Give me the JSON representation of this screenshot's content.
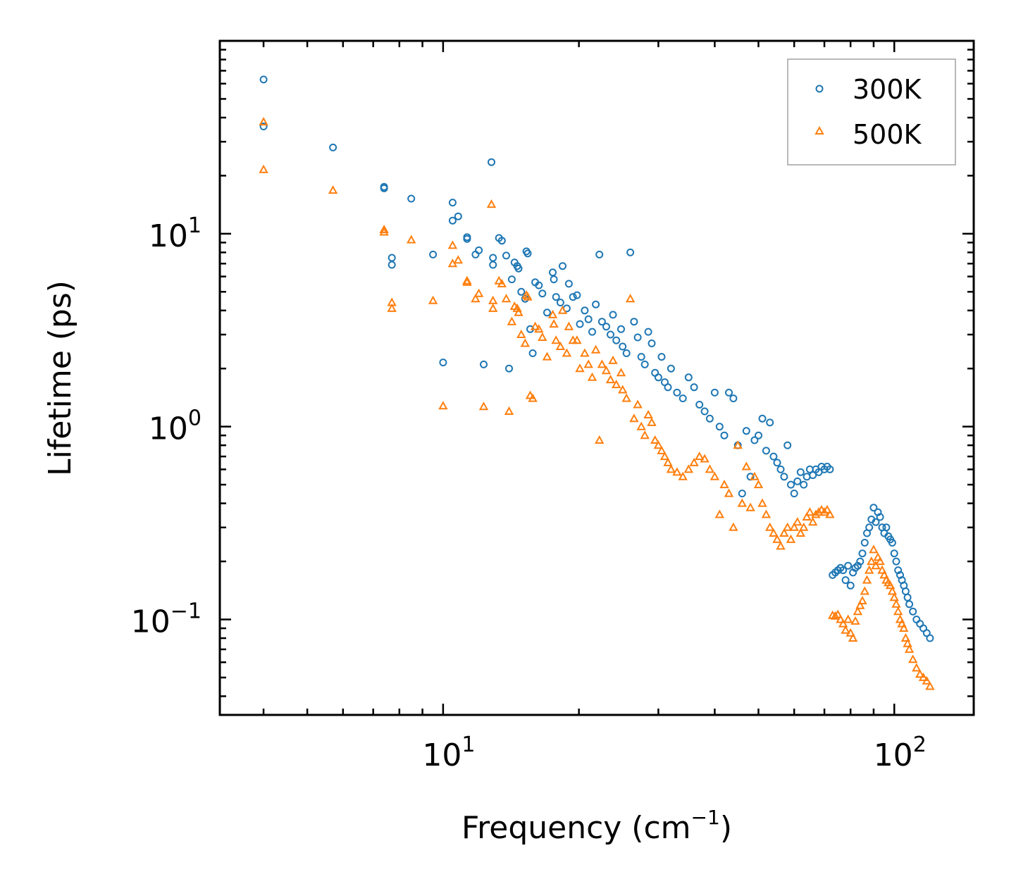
{
  "chart_data": {
    "type": "scatter",
    "xscale": "log",
    "yscale": "log",
    "xlabel": "Frequency (cm",
    "xlabel_sup": "−1",
    "xlabel_suffix": ")",
    "ylabel": "Lifetime (ps)",
    "xlim": [
      3.2,
      150
    ],
    "ylim": [
      0.032,
      100
    ],
    "xticks": [
      {
        "value": 10,
        "base": "10",
        "exp": "1"
      },
      {
        "value": 100,
        "base": "10",
        "exp": "2"
      }
    ],
    "yticks": [
      {
        "value": 0.1,
        "base": "10",
        "exp": "−1"
      },
      {
        "value": 1,
        "base": "10",
        "exp": "0"
      },
      {
        "value": 10,
        "base": "10",
        "exp": "1"
      }
    ],
    "legend_position": "top-right",
    "series": [
      {
        "name": "300K",
        "marker": "circle",
        "color": "#1f77b4",
        "points": [
          [
            4.0,
            63
          ],
          [
            4.0,
            36
          ],
          [
            5.7,
            28
          ],
          [
            7.4,
            17.5
          ],
          [
            7.4,
            17.2
          ],
          [
            7.7,
            7.5
          ],
          [
            7.7,
            6.9
          ],
          [
            8.5,
            15.2
          ],
          [
            9.5,
            7.8
          ],
          [
            10.0,
            2.15
          ],
          [
            10.5,
            14.5
          ],
          [
            10.5,
            11.7
          ],
          [
            10.8,
            12.3
          ],
          [
            11.3,
            9.6
          ],
          [
            11.3,
            9.4
          ],
          [
            11.8,
            7.8
          ],
          [
            12.0,
            8.2
          ],
          [
            12.3,
            2.1
          ],
          [
            12.8,
            23.5
          ],
          [
            12.9,
            7.5
          ],
          [
            12.9,
            6.9
          ],
          [
            13.3,
            9.5
          ],
          [
            13.5,
            9.2
          ],
          [
            13.8,
            7.7
          ],
          [
            14.0,
            2.0
          ],
          [
            14.2,
            5.8
          ],
          [
            14.4,
            7.1
          ],
          [
            14.6,
            6.8
          ],
          [
            14.7,
            6.6
          ],
          [
            14.9,
            5.0
          ],
          [
            15.3,
            8.1
          ],
          [
            15.4,
            7.9
          ],
          [
            15.2,
            4.6
          ],
          [
            15.6,
            3.2
          ],
          [
            15.8,
            2.4
          ],
          [
            16.0,
            5.6
          ],
          [
            16.3,
            5.4
          ],
          [
            16.6,
            4.9
          ],
          [
            17.0,
            3.9
          ],
          [
            17.5,
            6.3
          ],
          [
            17.6,
            5.8
          ],
          [
            17.8,
            4.7
          ],
          [
            18.2,
            4.4
          ],
          [
            18.4,
            6.8
          ],
          [
            18.8,
            4.1
          ],
          [
            19.0,
            5.5
          ],
          [
            19.4,
            4.7
          ],
          [
            19.8,
            4.8
          ],
          [
            20.1,
            3.4
          ],
          [
            20.6,
            4.0
          ],
          [
            21.0,
            3.6
          ],
          [
            21.4,
            3.1
          ],
          [
            21.8,
            4.3
          ],
          [
            22.2,
            7.8
          ],
          [
            22.5,
            3.5
          ],
          [
            23.0,
            3.3
          ],
          [
            23.5,
            3.0
          ],
          [
            23.8,
            3.8
          ],
          [
            24.2,
            2.8
          ],
          [
            24.8,
            3.2
          ],
          [
            25.0,
            2.6
          ],
          [
            25.5,
            2.4
          ],
          [
            26.0,
            8.0
          ],
          [
            26.5,
            3.5
          ],
          [
            27.0,
            2.9
          ],
          [
            27.5,
            2.3
          ],
          [
            28.0,
            2.1
          ],
          [
            28.5,
            3.1
          ],
          [
            29.0,
            2.7
          ],
          [
            29.5,
            1.9
          ],
          [
            30.0,
            1.8
          ],
          [
            30.5,
            2.3
          ],
          [
            31.0,
            1.7
          ],
          [
            31.5,
            1.6
          ],
          [
            32.0,
            2.0
          ],
          [
            33.0,
            1.5
          ],
          [
            34.0,
            1.4
          ],
          [
            35.0,
            1.8
          ],
          [
            36.0,
            1.6
          ],
          [
            37.0,
            1.3
          ],
          [
            38.0,
            1.2
          ],
          [
            39.0,
            1.1
          ],
          [
            40.0,
            1.5
          ],
          [
            41.0,
            1.0
          ],
          [
            42.0,
            0.9
          ],
          [
            43.0,
            1.5
          ],
          [
            44.0,
            1.4
          ],
          [
            45.0,
            0.8
          ],
          [
            46.0,
            0.45
          ],
          [
            47.0,
            0.95
          ],
          [
            48.0,
            0.55
          ],
          [
            49.0,
            0.85
          ],
          [
            50.0,
            0.9
          ],
          [
            51.0,
            1.1
          ],
          [
            52.0,
            0.75
          ],
          [
            53.0,
            1.05
          ],
          [
            54.0,
            0.7
          ],
          [
            55.0,
            0.65
          ],
          [
            56.0,
            0.6
          ],
          [
            57.0,
            0.55
          ],
          [
            58.0,
            0.8
          ],
          [
            59.0,
            0.5
          ],
          [
            60.0,
            0.45
          ],
          [
            61.0,
            0.52
          ],
          [
            62.0,
            0.58
          ],
          [
            63.0,
            0.5
          ],
          [
            64.0,
            0.55
          ],
          [
            65.0,
            0.6
          ],
          [
            66.0,
            0.56
          ],
          [
            67.0,
            0.6
          ],
          [
            68.0,
            0.58
          ],
          [
            69.0,
            0.62
          ],
          [
            70.0,
            0.6
          ],
          [
            71.0,
            0.62
          ],
          [
            72.0,
            0.6
          ],
          [
            73.0,
            0.17
          ],
          [
            74.0,
            0.175
          ],
          [
            75.0,
            0.18
          ],
          [
            76.0,
            0.185
          ],
          [
            77.0,
            0.18
          ],
          [
            78.0,
            0.16
          ],
          [
            79.0,
            0.19
          ],
          [
            80.0,
            0.15
          ],
          [
            81.0,
            0.175
          ],
          [
            82.0,
            0.185
          ],
          [
            83.0,
            0.19
          ],
          [
            84.0,
            0.2
          ],
          [
            85.0,
            0.22
          ],
          [
            86.0,
            0.25
          ],
          [
            87.0,
            0.28
          ],
          [
            88.0,
            0.3
          ],
          [
            89.0,
            0.33
          ],
          [
            90.0,
            0.38
          ],
          [
            91.0,
            0.32
          ],
          [
            92.0,
            0.36
          ],
          [
            93.0,
            0.34
          ],
          [
            94.0,
            0.3
          ],
          [
            95.0,
            0.28
          ],
          [
            96.0,
            0.3
          ],
          [
            97.0,
            0.27
          ],
          [
            98.0,
            0.26
          ],
          [
            99.0,
            0.25
          ],
          [
            100.0,
            0.22
          ],
          [
            101.0,
            0.2
          ],
          [
            102.0,
            0.18
          ],
          [
            103.0,
            0.17
          ],
          [
            104.0,
            0.16
          ],
          [
            105.0,
            0.15
          ],
          [
            106.0,
            0.14
          ],
          [
            107.0,
            0.13
          ],
          [
            108.0,
            0.12
          ],
          [
            110.0,
            0.11
          ],
          [
            112.0,
            0.1
          ],
          [
            114.0,
            0.095
          ],
          [
            116.0,
            0.09
          ],
          [
            118.0,
            0.085
          ],
          [
            120.0,
            0.08
          ]
        ]
      },
      {
        "name": "500K",
        "marker": "triangle",
        "color": "#ff7f0e",
        "points": [
          [
            4.0,
            38
          ],
          [
            4.0,
            21.5
          ],
          [
            5.7,
            16.8
          ],
          [
            7.4,
            10.5
          ],
          [
            7.4,
            10.2
          ],
          [
            7.7,
            4.4
          ],
          [
            7.7,
            4.1
          ],
          [
            8.5,
            9.3
          ],
          [
            9.5,
            4.5
          ],
          [
            10.0,
            1.28
          ],
          [
            10.5,
            8.7
          ],
          [
            10.5,
            7.0
          ],
          [
            10.8,
            7.3
          ],
          [
            11.3,
            5.7
          ],
          [
            11.3,
            5.6
          ],
          [
            11.8,
            4.6
          ],
          [
            12.0,
            4.9
          ],
          [
            12.3,
            1.27
          ],
          [
            12.8,
            14.2
          ],
          [
            12.9,
            4.5
          ],
          [
            12.9,
            4.1
          ],
          [
            13.3,
            5.7
          ],
          [
            13.5,
            5.5
          ],
          [
            13.8,
            4.6
          ],
          [
            14.0,
            1.2
          ],
          [
            14.2,
            3.5
          ],
          [
            14.4,
            4.2
          ],
          [
            14.6,
            4.1
          ],
          [
            14.7,
            3.9
          ],
          [
            14.9,
            3.0
          ],
          [
            15.3,
            4.8
          ],
          [
            15.4,
            4.7
          ],
          [
            15.2,
            2.7
          ],
          [
            15.6,
            1.45
          ],
          [
            15.8,
            1.4
          ],
          [
            16.0,
            3.3
          ],
          [
            16.3,
            3.2
          ],
          [
            16.6,
            2.9
          ],
          [
            17.0,
            2.3
          ],
          [
            17.5,
            3.8
          ],
          [
            17.6,
            3.4
          ],
          [
            17.8,
            2.8
          ],
          [
            18.2,
            2.6
          ],
          [
            18.4,
            4.0
          ],
          [
            18.8,
            2.4
          ],
          [
            19.0,
            3.3
          ],
          [
            19.4,
            2.8
          ],
          [
            19.8,
            2.8
          ],
          [
            20.1,
            2.0
          ],
          [
            20.6,
            2.4
          ],
          [
            21.0,
            2.1
          ],
          [
            21.4,
            1.8
          ],
          [
            21.8,
            2.5
          ],
          [
            22.2,
            0.85
          ],
          [
            22.5,
            2.1
          ],
          [
            23.0,
            1.95
          ],
          [
            23.5,
            1.75
          ],
          [
            23.8,
            2.2
          ],
          [
            24.2,
            1.65
          ],
          [
            24.8,
            1.9
          ],
          [
            25.0,
            1.55
          ],
          [
            25.5,
            1.4
          ],
          [
            26.0,
            4.6
          ],
          [
            26.5,
            1.1
          ],
          [
            27.0,
            1.3
          ],
          [
            27.5,
            1.0
          ],
          [
            28.0,
            0.9
          ],
          [
            28.5,
            1.15
          ],
          [
            29.0,
            1.05
          ],
          [
            29.5,
            0.85
          ],
          [
            30.0,
            0.8
          ],
          [
            30.5,
            0.75
          ],
          [
            31.0,
            0.7
          ],
          [
            31.5,
            0.65
          ],
          [
            32.0,
            0.6
          ],
          [
            33.0,
            0.58
          ],
          [
            34.0,
            0.55
          ],
          [
            35.0,
            0.6
          ],
          [
            36.0,
            0.65
          ],
          [
            37.0,
            0.7
          ],
          [
            38.0,
            0.68
          ],
          [
            39.0,
            0.6
          ],
          [
            40.0,
            0.55
          ],
          [
            41.0,
            0.35
          ],
          [
            42.0,
            0.5
          ],
          [
            43.0,
            0.45
          ],
          [
            44.0,
            0.3
          ],
          [
            45.0,
            0.8
          ],
          [
            46.0,
            0.4
          ],
          [
            47.0,
            0.62
          ],
          [
            48.0,
            0.38
          ],
          [
            49.0,
            0.55
          ],
          [
            50.0,
            0.5
          ],
          [
            51.0,
            0.4
          ],
          [
            52.0,
            0.35
          ],
          [
            53.0,
            0.3
          ],
          [
            54.0,
            0.28
          ],
          [
            55.0,
            0.26
          ],
          [
            56.0,
            0.24
          ],
          [
            57.0,
            0.28
          ],
          [
            58.0,
            0.3
          ],
          [
            59.0,
            0.26
          ],
          [
            60.0,
            0.3
          ],
          [
            61.0,
            0.32
          ],
          [
            62.0,
            0.28
          ],
          [
            63.0,
            0.3
          ],
          [
            64.0,
            0.34
          ],
          [
            65.0,
            0.36
          ],
          [
            66.0,
            0.32
          ],
          [
            67.0,
            0.35
          ],
          [
            68.0,
            0.36
          ],
          [
            69.0,
            0.37
          ],
          [
            70.0,
            0.36
          ],
          [
            71.0,
            0.37
          ],
          [
            72.0,
            0.35
          ],
          [
            73.0,
            0.105
          ],
          [
            74.0,
            0.104
          ],
          [
            75.0,
            0.106
          ],
          [
            76.0,
            0.1
          ],
          [
            77.0,
            0.095
          ],
          [
            78.0,
            0.088
          ],
          [
            79.0,
            0.1
          ],
          [
            80.0,
            0.085
          ],
          [
            81.0,
            0.08
          ],
          [
            82.0,
            0.098
          ],
          [
            83.0,
            0.11
          ],
          [
            84.0,
            0.118
          ],
          [
            85.0,
            0.125
          ],
          [
            86.0,
            0.14
          ],
          [
            87.0,
            0.16
          ],
          [
            88.0,
            0.18
          ],
          [
            89.0,
            0.2
          ],
          [
            90.0,
            0.23
          ],
          [
            91.0,
            0.19
          ],
          [
            92.0,
            0.21
          ],
          [
            93.0,
            0.2
          ],
          [
            94.0,
            0.18
          ],
          [
            95.0,
            0.17
          ],
          [
            96.0,
            0.16
          ],
          [
            97.0,
            0.155
          ],
          [
            98.0,
            0.15
          ],
          [
            99.0,
            0.14
          ],
          [
            100.0,
            0.13
          ],
          [
            101.0,
            0.12
          ],
          [
            102.0,
            0.11
          ],
          [
            103.0,
            0.1
          ],
          [
            104.0,
            0.095
          ],
          [
            105.0,
            0.09
          ],
          [
            106.0,
            0.08
          ],
          [
            107.0,
            0.075
          ],
          [
            108.0,
            0.07
          ],
          [
            110.0,
            0.062
          ],
          [
            112.0,
            0.056
          ],
          [
            114.0,
            0.052
          ],
          [
            116.0,
            0.05
          ],
          [
            118.0,
            0.048
          ],
          [
            120.0,
            0.045
          ]
        ]
      }
    ]
  }
}
